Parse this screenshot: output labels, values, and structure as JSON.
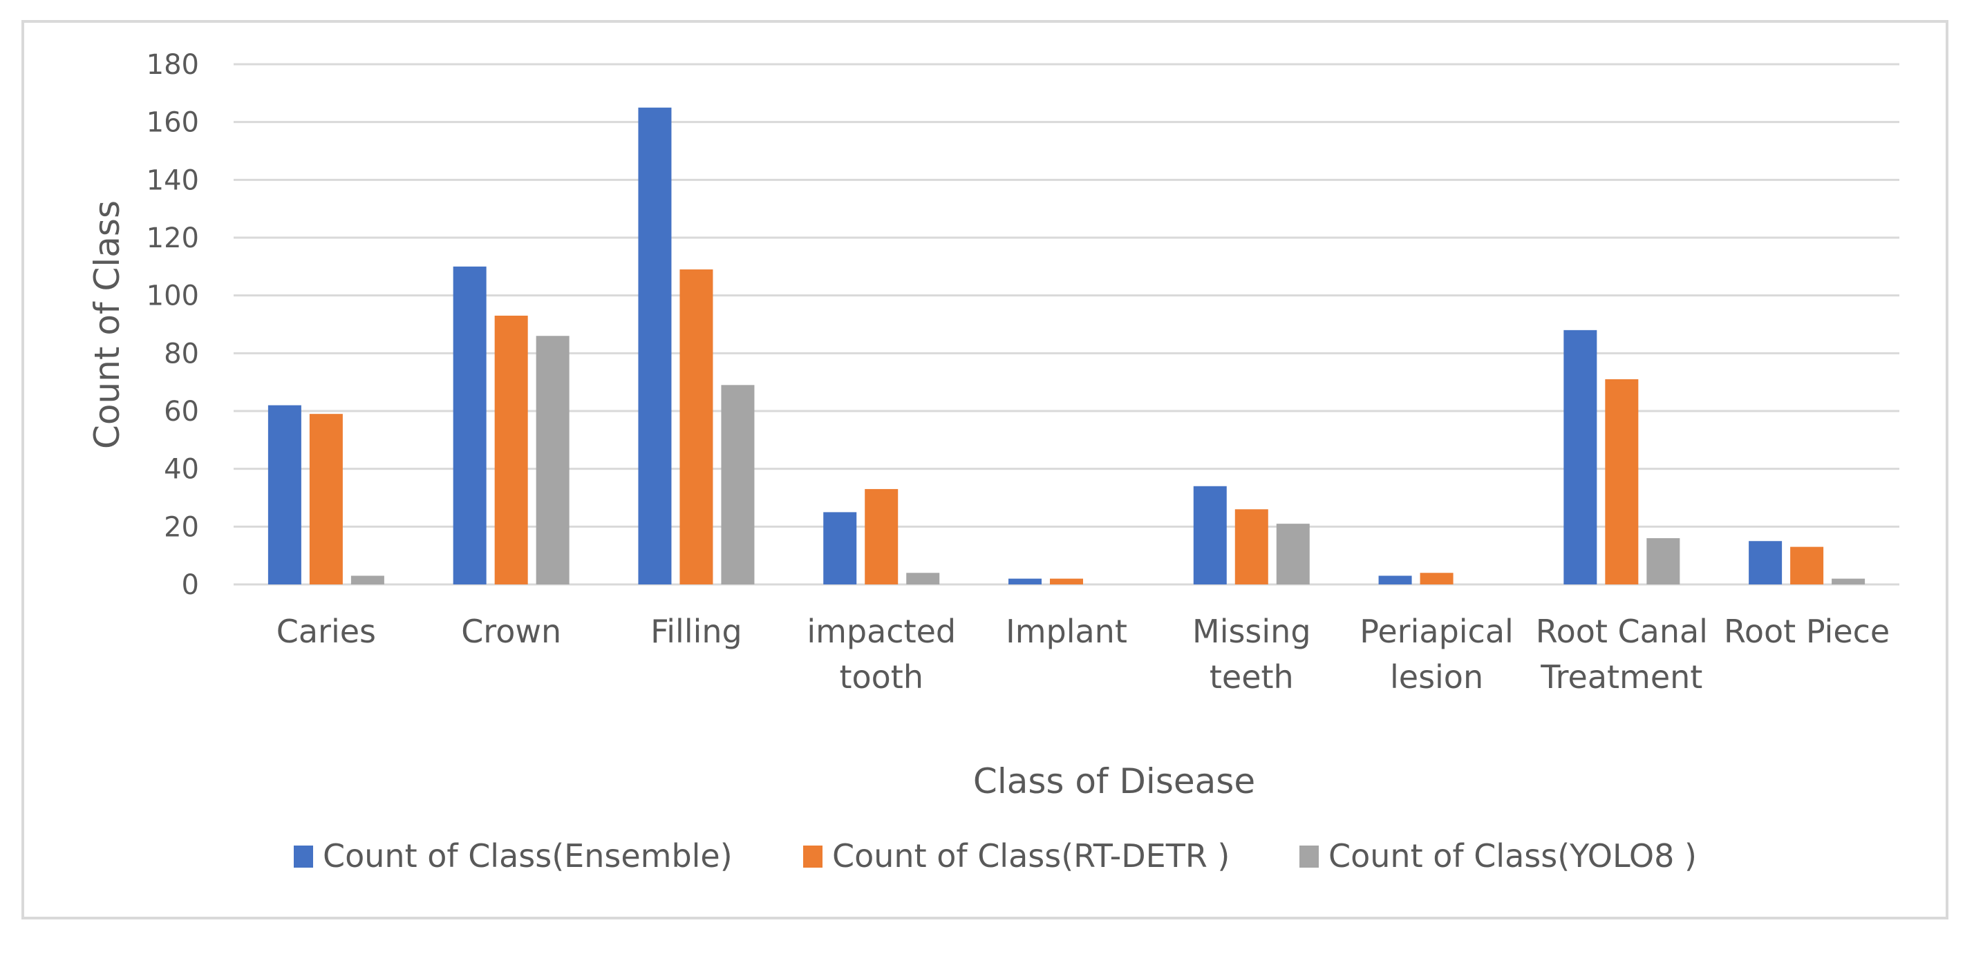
{
  "chart_data": {
    "type": "bar",
    "title": "",
    "xlabel": "Class of  Disease",
    "ylabel": "Count of Class",
    "ylim": [
      0,
      180
    ],
    "yticks": [
      0,
      20,
      40,
      60,
      80,
      100,
      120,
      140,
      160,
      180
    ],
    "grid": true,
    "legend_position": "bottom",
    "categories": [
      [
        "Caries"
      ],
      [
        "Crown"
      ],
      [
        "Filling"
      ],
      [
        "impacted",
        "tooth"
      ],
      [
        "Implant"
      ],
      [
        "Missing",
        "teeth"
      ],
      [
        "Periapical",
        "lesion"
      ],
      [
        "Root Canal",
        "Treatment"
      ],
      [
        "Root Piece"
      ]
    ],
    "series": [
      {
        "name": "Count of Class(Ensemble)",
        "color": "#4472c4",
        "values": [
          62,
          110,
          165,
          25,
          2,
          34,
          3,
          88,
          15
        ]
      },
      {
        "name": "Count of Class(RT-DETR )",
        "color": "#ed7d31",
        "values": [
          59,
          93,
          109,
          33,
          2,
          26,
          4,
          71,
          13
        ]
      },
      {
        "name": "Count of Class(YOLO8 )",
        "color": "#a5a5a5",
        "values": [
          3,
          86,
          69,
          4,
          0,
          21,
          0,
          16,
          2
        ]
      }
    ]
  }
}
